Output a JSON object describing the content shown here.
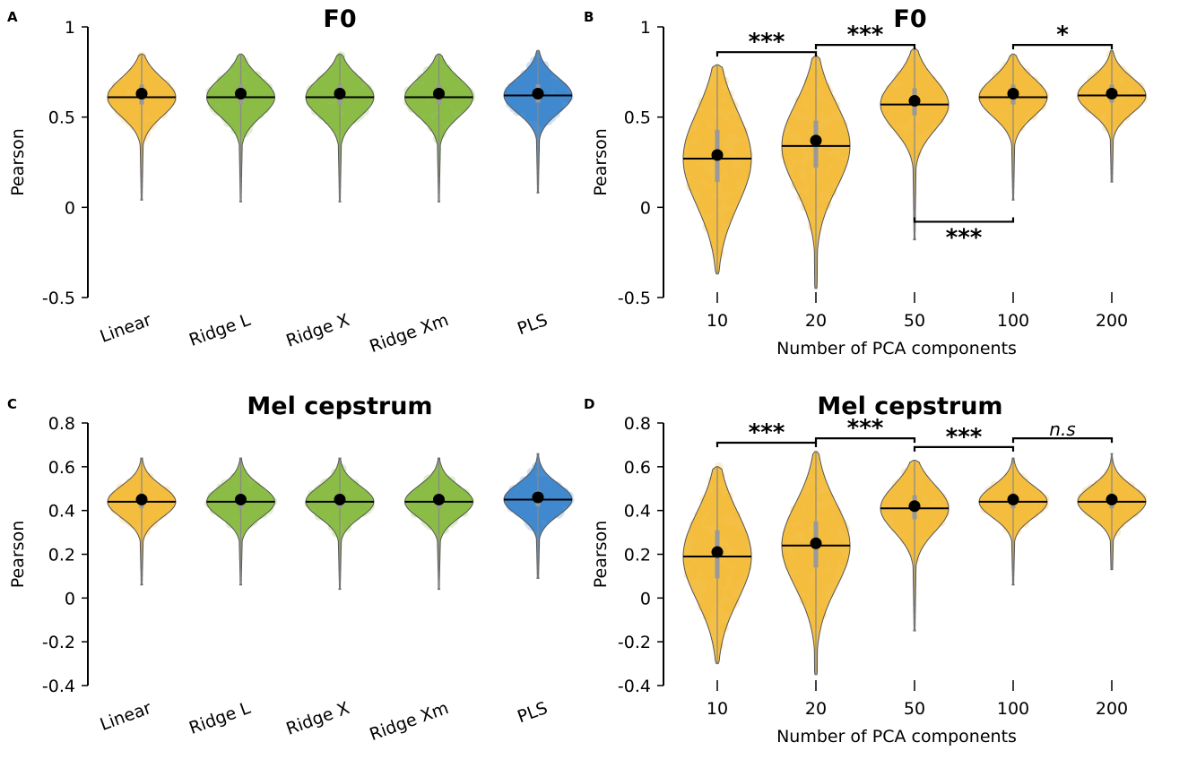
{
  "colors": {
    "orange": "#f2b424",
    "green": "#7ab32e",
    "blue": "#2879c8",
    "outline": "#555555"
  },
  "chart_data": [
    {
      "panel_label": "A",
      "type": "violin",
      "title": "F0",
      "ylabel": "Pearson",
      "xlabel": "",
      "ylim": [
        -0.5,
        1
      ],
      "yticks": [
        {
          "value": -0.5,
          "label": "-0.5"
        },
        {
          "value": 0,
          "label": "0"
        },
        {
          "value": 0.5,
          "label": "0.5"
        },
        {
          "value": 1,
          "label": "1"
        }
      ],
      "categories": [
        "Linear",
        "Ridge L",
        "Ridge X",
        "Ridge Xm",
        "PLS"
      ],
      "rotate_labels": true,
      "violins": [
        {
          "color": "orange",
          "min": 0.04,
          "max": 0.85,
          "mean": 0.63,
          "median": 0.61,
          "q1": 0.57,
          "q3": 0.68
        },
        {
          "color": "green",
          "min": 0.03,
          "max": 0.85,
          "mean": 0.63,
          "median": 0.61,
          "q1": 0.57,
          "q3": 0.68
        },
        {
          "color": "green",
          "min": 0.03,
          "max": 0.85,
          "mean": 0.63,
          "median": 0.61,
          "q1": 0.57,
          "q3": 0.68
        },
        {
          "color": "green",
          "min": 0.03,
          "max": 0.85,
          "mean": 0.63,
          "median": 0.61,
          "q1": 0.57,
          "q3": 0.68
        },
        {
          "color": "blue",
          "min": 0.08,
          "max": 0.87,
          "mean": 0.63,
          "median": 0.62,
          "q1": 0.58,
          "q3": 0.68
        }
      ],
      "significance": []
    },
    {
      "panel_label": "B",
      "type": "violin",
      "title": "F0",
      "ylabel": "Pearson",
      "xlabel": "Number of PCA components",
      "ylim": [
        -0.5,
        1
      ],
      "yticks": [
        {
          "value": -0.5,
          "label": "-0.5"
        },
        {
          "value": 0,
          "label": "0"
        },
        {
          "value": 0.5,
          "label": "0.5"
        },
        {
          "value": 1,
          "label": "1"
        }
      ],
      "categories": [
        "10",
        "20",
        "50",
        "100",
        "200"
      ],
      "rotate_labels": false,
      "violins": [
        {
          "color": "orange",
          "min": -0.37,
          "max": 0.79,
          "mean": 0.29,
          "median": 0.27,
          "q1": 0.14,
          "q3": 0.43
        },
        {
          "color": "orange",
          "min": -0.45,
          "max": 0.84,
          "mean": 0.37,
          "median": 0.34,
          "q1": 0.22,
          "q3": 0.48
        },
        {
          "color": "orange",
          "min": -0.18,
          "max": 0.88,
          "mean": 0.59,
          "median": 0.57,
          "q1": 0.51,
          "q3": 0.66
        },
        {
          "color": "orange",
          "min": 0.04,
          "max": 0.85,
          "mean": 0.63,
          "median": 0.61,
          "q1": 0.57,
          "q3": 0.68
        },
        {
          "color": "orange",
          "min": 0.14,
          "max": 0.87,
          "mean": 0.63,
          "median": 0.62,
          "q1": 0.58,
          "q3": 0.68
        }
      ],
      "significance": [
        {
          "from": 0,
          "to": 1,
          "y": 0.86,
          "label": "***",
          "below": false
        },
        {
          "from": 1,
          "to": 2,
          "y": 0.9,
          "label": "***",
          "below": false
        },
        {
          "from": 3,
          "to": 4,
          "y": 0.9,
          "label": "*",
          "below": false
        },
        {
          "from": 2,
          "to": 3,
          "y": -0.08,
          "label": "***",
          "below": true
        }
      ]
    },
    {
      "panel_label": "C",
      "type": "violin",
      "title": "Mel cepstrum",
      "ylabel": "Pearson",
      "xlabel": "",
      "ylim": [
        -0.4,
        0.8
      ],
      "yticks": [
        {
          "value": -0.4,
          "label": "-0.4"
        },
        {
          "value": -0.2,
          "label": "-0.2"
        },
        {
          "value": 0,
          "label": "0"
        },
        {
          "value": 0.2,
          "label": "0.2"
        },
        {
          "value": 0.4,
          "label": "0.4"
        },
        {
          "value": 0.6,
          "label": "0.6"
        },
        {
          "value": 0.8,
          "label": "0.8"
        }
      ],
      "categories": [
        "Linear",
        "Ridge L",
        "Ridge X",
        "Ridge Xm",
        "PLS"
      ],
      "rotate_labels": true,
      "violins": [
        {
          "color": "orange",
          "min": 0.06,
          "max": 0.64,
          "mean": 0.45,
          "median": 0.44,
          "q1": 0.41,
          "q3": 0.48
        },
        {
          "color": "green",
          "min": 0.06,
          "max": 0.64,
          "mean": 0.45,
          "median": 0.44,
          "q1": 0.41,
          "q3": 0.48
        },
        {
          "color": "green",
          "min": 0.04,
          "max": 0.64,
          "mean": 0.45,
          "median": 0.44,
          "q1": 0.41,
          "q3": 0.48
        },
        {
          "color": "green",
          "min": 0.04,
          "max": 0.64,
          "mean": 0.45,
          "median": 0.44,
          "q1": 0.41,
          "q3": 0.48
        },
        {
          "color": "blue",
          "min": 0.09,
          "max": 0.66,
          "mean": 0.46,
          "median": 0.45,
          "q1": 0.42,
          "q3": 0.49
        }
      ],
      "significance": []
    },
    {
      "panel_label": "D",
      "type": "violin",
      "title": "Mel cepstrum",
      "ylabel": "Pearson",
      "xlabel": "Number of PCA components",
      "ylim": [
        -0.4,
        0.8
      ],
      "yticks": [
        {
          "value": -0.4,
          "label": "-0.4"
        },
        {
          "value": -0.2,
          "label": "-0.2"
        },
        {
          "value": 0,
          "label": "0"
        },
        {
          "value": 0.2,
          "label": "0.2"
        },
        {
          "value": 0.4,
          "label": "0.4"
        },
        {
          "value": 0.6,
          "label": "0.6"
        },
        {
          "value": 0.8,
          "label": "0.8"
        }
      ],
      "categories": [
        "10",
        "20",
        "50",
        "100",
        "200"
      ],
      "rotate_labels": false,
      "violins": [
        {
          "color": "orange",
          "min": -0.3,
          "max": 0.6,
          "mean": 0.21,
          "median": 0.19,
          "q1": 0.09,
          "q3": 0.31
        },
        {
          "color": "orange",
          "min": -0.35,
          "max": 0.67,
          "mean": 0.25,
          "median": 0.24,
          "q1": 0.14,
          "q3": 0.35
        },
        {
          "color": "orange",
          "min": -0.15,
          "max": 0.63,
          "mean": 0.42,
          "median": 0.41,
          "q1": 0.36,
          "q3": 0.47
        },
        {
          "color": "orange",
          "min": 0.06,
          "max": 0.64,
          "mean": 0.45,
          "median": 0.44,
          "q1": 0.41,
          "q3": 0.48
        },
        {
          "color": "orange",
          "min": 0.13,
          "max": 0.66,
          "mean": 0.45,
          "median": 0.44,
          "q1": 0.41,
          "q3": 0.48
        }
      ],
      "significance": [
        {
          "from": 0,
          "to": 1,
          "y": 0.71,
          "label": "***",
          "below": false,
          "italic": false
        },
        {
          "from": 1,
          "to": 2,
          "y": 0.73,
          "label": "***",
          "below": false,
          "italic": false
        },
        {
          "from": 2,
          "to": 3,
          "y": 0.69,
          "label": "***",
          "below": false,
          "italic": false
        },
        {
          "from": 3,
          "to": 4,
          "y": 0.73,
          "label": "n.s",
          "below": false,
          "italic": true
        }
      ]
    }
  ]
}
